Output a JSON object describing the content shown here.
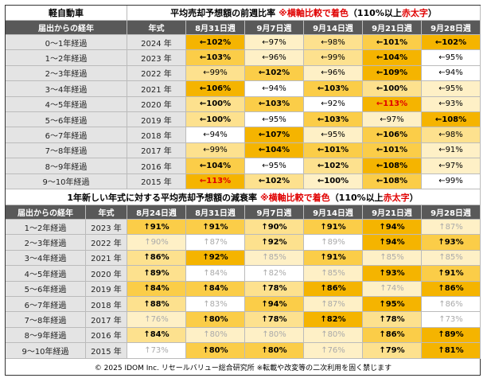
{
  "top": {
    "corner": "軽自動車",
    "title_main": "平均売却予想額の前週比率",
    "note_red": "※横軸比較で着色",
    "note_mid": "（110%以上 ",
    "note_red2": "赤太字",
    "note_end": "）",
    "headers": [
      "届出からの経年",
      "年式",
      "8月31日週",
      "9月7日週",
      "9月14日週",
      "9月21日週",
      "9月28日週"
    ],
    "rows": [
      [
        "0〜1年経過",
        "2024 年",
        "←102%",
        "←97%",
        "←98%",
        "←101%",
        "←102%"
      ],
      [
        "1〜2年経過",
        "2023 年",
        "←103%",
        "←96%",
        "←99%",
        "←104%",
        "←95%"
      ],
      [
        "2〜3年経過",
        "2022 年",
        "←99%",
        "←102%",
        "←96%",
        "←109%",
        "←94%"
      ],
      [
        "3〜4年経過",
        "2021 年",
        "←106%",
        "←94%",
        "←103%",
        "←100%",
        "←95%"
      ],
      [
        "4〜5年経過",
        "2020 年",
        "←100%",
        "←103%",
        "←92%",
        "←113%",
        "←93%"
      ],
      [
        "5〜6年経過",
        "2019 年",
        "←100%",
        "←95%",
        "←103%",
        "←97%",
        "←108%"
      ],
      [
        "6〜7年経過",
        "2018 年",
        "←94%",
        "←107%",
        "←95%",
        "←106%",
        "←98%"
      ],
      [
        "7〜8年経過",
        "2017 年",
        "←99%",
        "←104%",
        "←101%",
        "←101%",
        "←91%"
      ],
      [
        "8〜9年経過",
        "2016 年",
        "←104%",
        "←95%",
        "←102%",
        "←108%",
        "←97%"
      ],
      [
        "9〜10年経過",
        "2015 年",
        "←113%",
        "←102%",
        "←100%",
        "←108%",
        "←99%"
      ]
    ]
  },
  "bottom": {
    "title_main": "1年新しい年式に対する平均売却予想額の減衰率",
    "note_red": "※横軸比較で着色",
    "note_mid": "（110%以上 ",
    "note_red2": "赤太字",
    "note_end": "）",
    "headers": [
      "届出からの経年",
      "年式",
      "8月24日週",
      "8月31日週",
      "9月7日週",
      "9月14日週",
      "9月21日週",
      "9月28日週"
    ],
    "rows": [
      [
        "1〜2年経過",
        "2023 年",
        "↑91%",
        "↑91%",
        "↑90%",
        "↑91%",
        "↑94%",
        "↑87%"
      ],
      [
        "2〜3年経過",
        "2022 年",
        "↑90%",
        "↑87%",
        "↑92%",
        "↑89%",
        "↑94%",
        "↑93%"
      ],
      [
        "3〜4年経過",
        "2021 年",
        "↑86%",
        "↑92%",
        "↑85%",
        "↑91%",
        "↑85%",
        "↑85%"
      ],
      [
        "4〜5年経過",
        "2020 年",
        "↑89%",
        "↑84%",
        "↑82%",
        "↑85%",
        "↑93%",
        "↑91%"
      ],
      [
        "5〜6年経過",
        "2019 年",
        "↑84%",
        "↑84%",
        "↑78%",
        "↑86%",
        "↑74%",
        "↑86%"
      ],
      [
        "6〜7年経過",
        "2018 年",
        "↑88%",
        "↑83%",
        "↑94%",
        "↑87%",
        "↑95%",
        "↑86%"
      ],
      [
        "7〜8年経過",
        "2017 年",
        "↑76%",
        "↑80%",
        "↑78%",
        "↑82%",
        "↑78%",
        "↑73%"
      ],
      [
        "8〜9年経過",
        "2016 年",
        "↑84%",
        "↑80%",
        "↑80%",
        "↑80%",
        "↑86%",
        "↑89%"
      ],
      [
        "9〜10年経過",
        "2015 年",
        "↑73%",
        "↑80%",
        "↑80%",
        "↑76%",
        "↑79%",
        "↑81%"
      ]
    ]
  },
  "footer": "© 2025 IDOM Inc. リセールバリュー総合研究所 ※転載や改変等の二次利用を固く禁じます"
}
